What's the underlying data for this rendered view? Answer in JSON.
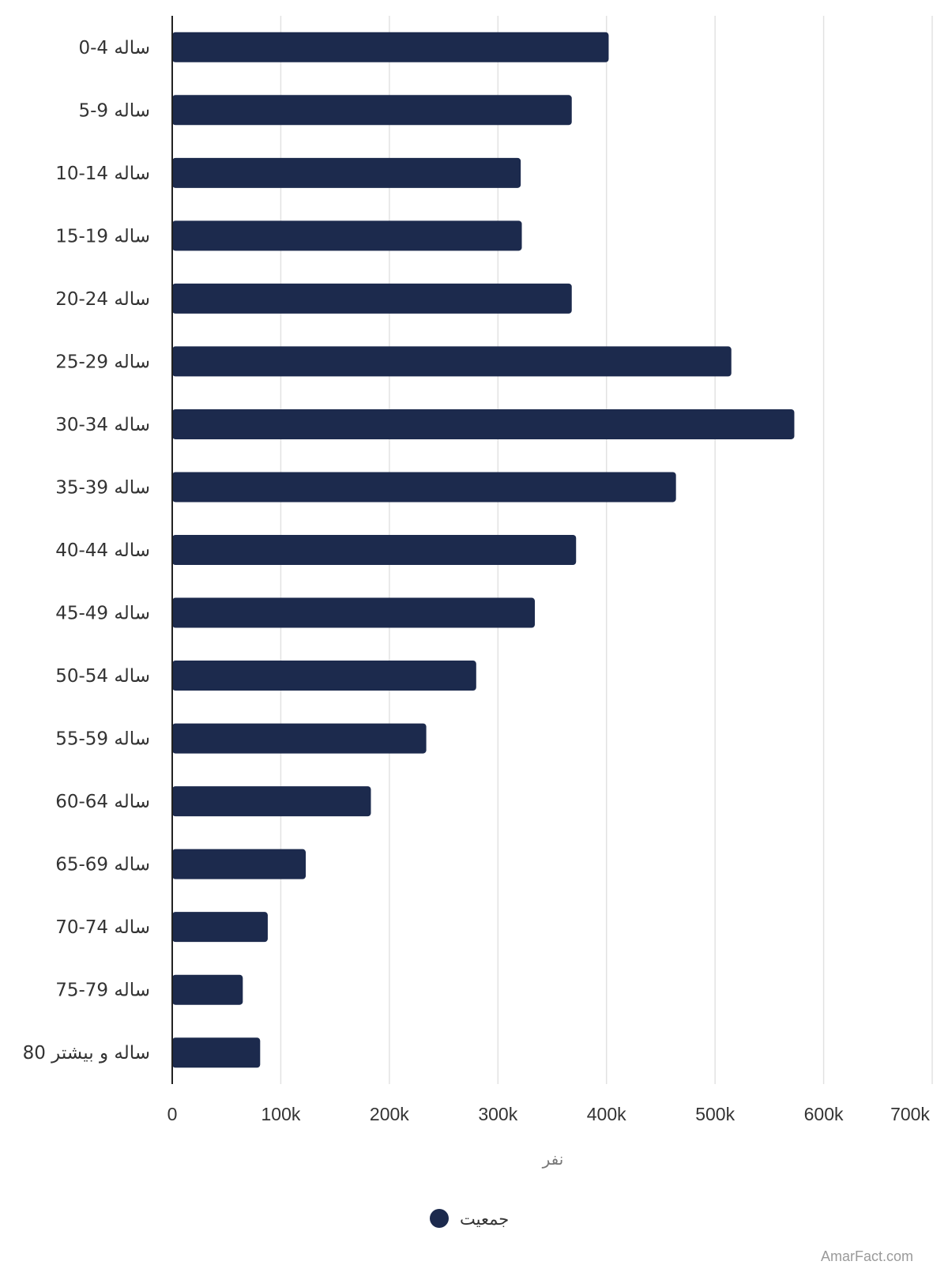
{
  "chart_data": {
    "type": "bar",
    "orientation": "horizontal",
    "categories": [
      "0-4 ساله",
      "5-9 ساله",
      "10-14 ساله",
      "15-19 ساله",
      "20-24 ساله",
      "25-29 ساله",
      "30-34 ساله",
      "35-39 ساله",
      "40-44 ساله",
      "45-49 ساله",
      "50-54 ساله",
      "55-59 ساله",
      "60-64 ساله",
      "65-69 ساله",
      "70-74 ساله",
      "75-79 ساله",
      "80 ساله و بیشتر"
    ],
    "series": [
      {
        "name": "جمعیت",
        "values": [
          402000,
          368000,
          321000,
          322000,
          368000,
          515000,
          573000,
          464000,
          372000,
          334000,
          280000,
          234000,
          183000,
          123000,
          88000,
          65000,
          81000
        ]
      }
    ],
    "xlabel": "نفر",
    "ylabel": "",
    "xlim": [
      0,
      700000
    ],
    "ticks": [
      0,
      100000,
      200000,
      300000,
      400000,
      500000,
      600000,
      700000
    ],
    "tick_labels": [
      "0",
      "100k",
      "200k",
      "300k",
      "400k",
      "500k",
      "600k",
      "700k"
    ],
    "grid": "vertical",
    "legend_position": "bottom",
    "bar_color": "#1c2a4d"
  },
  "watermark": "AmarFact.com"
}
